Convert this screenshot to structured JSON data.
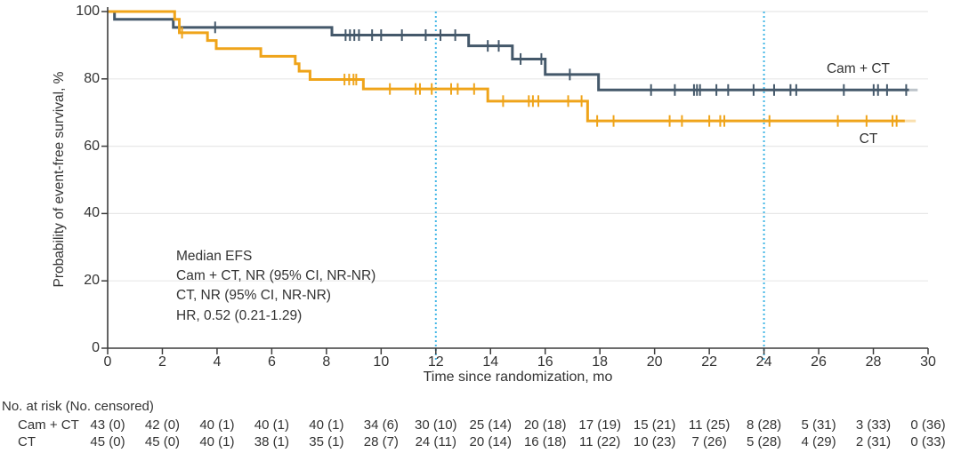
{
  "figure": {
    "y_axis_title": "Probability of event-free survival, %",
    "x_axis_title": "Time since randomization, mo",
    "y_ticks": [
      0,
      20,
      40,
      60,
      80,
      100
    ],
    "x_ticks": [
      0,
      2,
      4,
      6,
      8,
      10,
      12,
      14,
      16,
      18,
      20,
      22,
      24,
      26,
      28,
      30
    ],
    "legend": {
      "cam_ct": "Cam + CT",
      "ct": "CT"
    },
    "annotation": {
      "lines": [
        "Median EFS",
        "Cam + CT, NR (95% CI, NR-NR)",
        "CT, NR (95% CI, NR-NR)",
        "HR, 0.52 (0.21-1.29)"
      ]
    },
    "colors": {
      "cam_ct": "#44586a",
      "ct": "#efa41a",
      "reference_line": "#41b6e6",
      "gridline": "#e8e8e8",
      "axis": "#3c3c3c",
      "text": "#333333"
    },
    "reference_lines_mo": [
      12,
      24
    ]
  },
  "chart_data": {
    "type": "line",
    "subtype": "kaplan-meier-step",
    "xlabel": "Time since randomization, mo",
    "ylabel": "Probability of event-free survival, %",
    "xlim": [
      0,
      30
    ],
    "ylim": [
      0,
      100
    ],
    "grid": "horizontal",
    "series": [
      {
        "name": "Cam + CT",
        "color": "#44586a",
        "steps": [
          [
            0,
            100
          ],
          [
            0.25,
            97.7
          ],
          [
            2.4,
            95.3
          ],
          [
            8.2,
            93.0
          ],
          [
            13.2,
            89.8
          ],
          [
            14.8,
            85.9
          ],
          [
            16.0,
            81.3
          ],
          [
            17.95,
            76.7
          ]
        ],
        "end_mo": 29.3,
        "fade_to_mo": 29.62,
        "censor_ticks": [
          [
            3.93,
            95.3
          ],
          [
            8.7,
            93.0
          ],
          [
            8.86,
            93.0
          ],
          [
            9.02,
            93.0
          ],
          [
            9.19,
            93.0
          ],
          [
            9.67,
            93.0
          ],
          [
            10.0,
            93.0
          ],
          [
            10.76,
            93.0
          ],
          [
            11.63,
            93.0
          ],
          [
            12.17,
            93.0
          ],
          [
            12.71,
            93.0
          ],
          [
            13.9,
            89.8
          ],
          [
            14.3,
            89.8
          ],
          [
            15.1,
            85.9
          ],
          [
            15.86,
            85.9
          ],
          [
            16.9,
            81.3
          ],
          [
            19.87,
            76.7
          ],
          [
            20.74,
            76.7
          ],
          [
            21.44,
            76.7
          ],
          [
            21.55,
            76.7
          ],
          [
            21.66,
            76.7
          ],
          [
            22.26,
            76.7
          ],
          [
            22.69,
            76.7
          ],
          [
            23.62,
            76.7
          ],
          [
            24.37,
            76.7
          ],
          [
            24.97,
            76.7
          ],
          [
            25.18,
            76.7
          ],
          [
            26.92,
            76.7
          ],
          [
            28.01,
            76.7
          ],
          [
            28.17,
            76.7
          ],
          [
            28.5,
            76.7
          ],
          [
            29.2,
            76.7
          ]
        ]
      },
      {
        "name": "CT",
        "color": "#efa41a",
        "steps": [
          [
            0,
            100
          ],
          [
            2.45,
            97.7
          ],
          [
            2.62,
            93.7
          ],
          [
            3.65,
            91.4
          ],
          [
            3.97,
            89.0
          ],
          [
            5.6,
            86.7
          ],
          [
            6.86,
            84.5
          ],
          [
            7.0,
            82.3
          ],
          [
            7.4,
            79.8
          ],
          [
            9.35,
            77.0
          ],
          [
            13.9,
            73.4
          ],
          [
            17.55,
            67.5
          ]
        ],
        "end_mo": 29.15,
        "fade_to_mo": 29.55,
        "censor_ticks": [
          [
            2.72,
            93.7
          ],
          [
            8.66,
            79.8
          ],
          [
            8.83,
            79.8
          ],
          [
            8.99,
            79.8
          ],
          [
            9.09,
            79.8
          ],
          [
            10.32,
            77.0
          ],
          [
            11.26,
            77.0
          ],
          [
            11.42,
            77.0
          ],
          [
            11.85,
            77.0
          ],
          [
            12.56,
            77.0
          ],
          [
            12.8,
            77.0
          ],
          [
            13.4,
            77.0
          ],
          [
            14.46,
            73.4
          ],
          [
            15.4,
            73.4
          ],
          [
            15.55,
            73.4
          ],
          [
            15.75,
            73.4
          ],
          [
            16.84,
            73.4
          ],
          [
            17.33,
            73.4
          ],
          [
            17.9,
            67.5
          ],
          [
            18.5,
            67.5
          ],
          [
            20.55,
            67.5
          ],
          [
            21.0,
            67.5
          ],
          [
            22.0,
            67.5
          ],
          [
            22.4,
            67.5
          ],
          [
            22.55,
            67.5
          ],
          [
            24.2,
            67.5
          ],
          [
            26.7,
            67.5
          ],
          [
            27.75,
            67.5
          ],
          [
            28.7,
            67.5
          ],
          [
            28.85,
            67.5
          ]
        ]
      }
    ]
  },
  "risk_table": {
    "header": "No. at risk (No. censored)",
    "times": [
      0,
      2,
      4,
      6,
      8,
      10,
      12,
      14,
      16,
      18,
      20,
      22,
      24,
      26,
      28,
      30
    ],
    "rows": [
      {
        "label": "Cam + CT",
        "values": [
          "43 (0)",
          "42 (0)",
          "40 (1)",
          "40 (1)",
          "40 (1)",
          "34 (6)",
          "30 (10)",
          "25 (14)",
          "20 (18)",
          "17 (19)",
          "15 (21)",
          "11 (25)",
          "8 (28)",
          "5 (31)",
          "3 (33)",
          "0 (36)"
        ]
      },
      {
        "label": "CT",
        "values": [
          "45 (0)",
          "45 (0)",
          "40 (1)",
          "38 (1)",
          "35 (1)",
          "28 (7)",
          "24 (11)",
          "20 (14)",
          "16 (18)",
          "11 (22)",
          "10 (23)",
          "7 (26)",
          "5 (28)",
          "4 (29)",
          "2 (31)",
          "0 (33)"
        ]
      }
    ]
  }
}
